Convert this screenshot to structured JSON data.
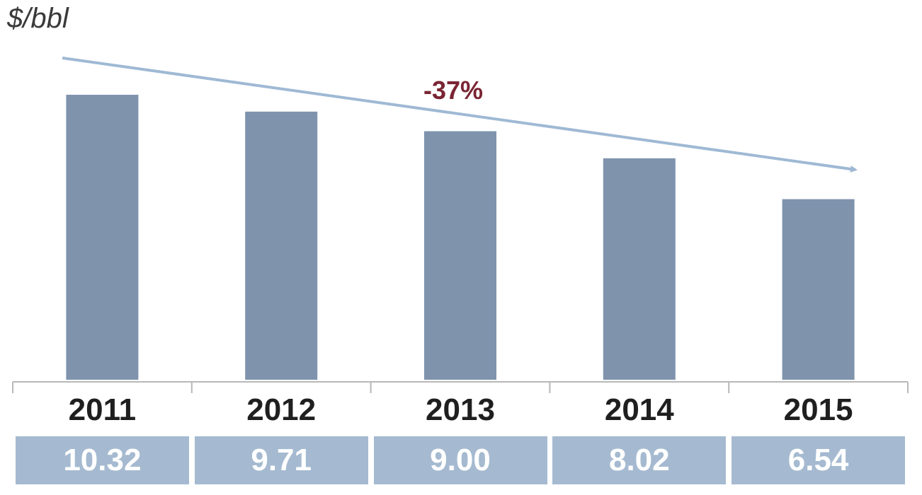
{
  "chart_data": {
    "type": "bar",
    "ylabel": "$/bbl",
    "categories": [
      "2011",
      "2012",
      "2013",
      "2014",
      "2015"
    ],
    "values": [
      10.32,
      9.71,
      9.0,
      8.02,
      6.54
    ],
    "value_labels": [
      "10.32",
      "9.71",
      "9.00",
      "8.02",
      "6.54"
    ],
    "ylim": [
      0,
      10.5
    ],
    "grid": false,
    "annotation": "-37%",
    "colors": {
      "bar": "#7f93ad",
      "value_box": "#a5bad0",
      "trend_arrow": "#9fb9d4",
      "annotation": "#7a2433",
      "axis": "#b8b8b8"
    }
  }
}
